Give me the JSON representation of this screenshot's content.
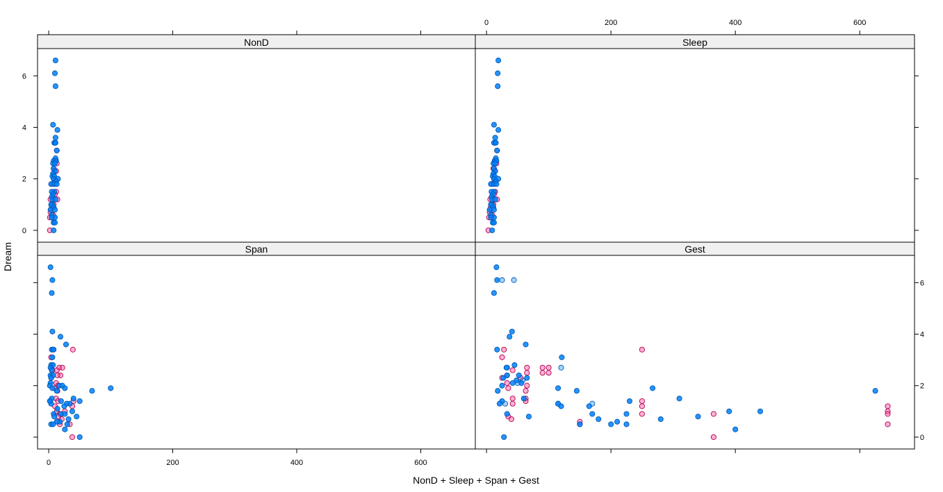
{
  "chart_data": {
    "type": "scatter",
    "layout": "lattice 2x2",
    "ylabel": "Dream",
    "xlabel": "NonD + Sleep + Span + Gest",
    "xlim": [
      -18,
      688
    ],
    "ylim": [
      -0.46,
      7.06
    ],
    "x_ticks": [
      0,
      200,
      400,
      600
    ],
    "y_ticks": [
      0,
      2,
      4,
      6
    ],
    "grid": false,
    "legend": "none",
    "colors": {
      "blue_fill": "#0080FF",
      "blue_edge": "#005BB0",
      "pink_fill": "#FF4FA0",
      "pink_edge": "#B0004F",
      "strip": "#F0F0F0"
    },
    "panels": [
      {
        "name": "NonD",
        "blue": [
          [
            11,
            6.6
          ],
          [
            10,
            6.1
          ],
          [
            11,
            5.6
          ],
          [
            7,
            4.1
          ],
          [
            14,
            3.9
          ],
          [
            11,
            3.6
          ],
          [
            9,
            3.4
          ],
          [
            11,
            3.4
          ],
          [
            13,
            3.1
          ],
          [
            11,
            2.8
          ],
          [
            8,
            2.7
          ],
          [
            12,
            2.7
          ],
          [
            7,
            2.6
          ],
          [
            10,
            2.6
          ],
          [
            8,
            2.4
          ],
          [
            10,
            2.3
          ],
          [
            7,
            2.2
          ],
          [
            6,
            2.1
          ],
          [
            9,
            2.1
          ],
          [
            8,
            2.0
          ],
          [
            15,
            2.0
          ],
          [
            12,
            1.9
          ],
          [
            4,
            1.8
          ],
          [
            9,
            1.8
          ],
          [
            13,
            1.8
          ],
          [
            9,
            1.5
          ],
          [
            5,
            1.5
          ],
          [
            7,
            1.4
          ],
          [
            5,
            1.3
          ],
          [
            6,
            1.2
          ],
          [
            11,
            1.2
          ],
          [
            6,
            1.0
          ],
          [
            4,
            1.0
          ],
          [
            8,
            0.9
          ],
          [
            3,
            0.8
          ],
          [
            10,
            0.8
          ],
          [
            5,
            0.6
          ],
          [
            10,
            0.5
          ],
          [
            5,
            0.5
          ],
          [
            8,
            0.3
          ],
          [
            10,
            0.3
          ],
          [
            8,
            0
          ]
        ],
        "pink": [
          [
            10,
            3.4
          ],
          [
            13,
            3.1
          ],
          [
            11,
            2.7
          ],
          [
            13,
            2.6
          ],
          [
            8,
            2.4
          ],
          [
            12,
            2.3
          ],
          [
            9,
            2.0
          ],
          [
            11,
            1.9
          ],
          [
            6,
            1.8
          ],
          [
            12,
            1.5
          ],
          [
            10,
            1.4
          ],
          [
            14,
            1.2
          ],
          [
            3,
            1.2
          ],
          [
            8,
            1.0
          ],
          [
            5,
            0.9
          ],
          [
            3,
            0.7
          ],
          [
            7,
            0.6
          ],
          [
            2,
            0.5
          ],
          [
            5,
            0.5
          ],
          [
            2,
            0
          ]
        ]
      },
      {
        "name": "Sleep",
        "blue": [
          [
            19,
            6.6
          ],
          [
            18,
            6.1
          ],
          [
            18,
            5.6
          ],
          [
            12,
            4.1
          ],
          [
            19,
            3.9
          ],
          [
            14,
            3.6
          ],
          [
            12,
            3.4
          ],
          [
            15,
            3.4
          ],
          [
            17,
            3.1
          ],
          [
            15,
            2.8
          ],
          [
            13,
            2.7
          ],
          [
            16,
            2.7
          ],
          [
            11,
            2.6
          ],
          [
            14,
            2.6
          ],
          [
            12,
            2.4
          ],
          [
            14,
            2.3
          ],
          [
            11,
            2.2
          ],
          [
            10,
            2.1
          ],
          [
            13,
            2.1
          ],
          [
            12,
            2.0
          ],
          [
            19,
            2.0
          ],
          [
            15,
            1.9
          ],
          [
            7,
            1.8
          ],
          [
            12,
            1.8
          ],
          [
            16,
            1.8
          ],
          [
            12,
            1.5
          ],
          [
            8,
            1.5
          ],
          [
            10,
            1.4
          ],
          [
            8,
            1.3
          ],
          [
            9,
            1.2
          ],
          [
            14,
            1.2
          ],
          [
            9,
            1.0
          ],
          [
            7,
            1.0
          ],
          [
            11,
            0.9
          ],
          [
            5,
            0.8
          ],
          [
            12,
            0.8
          ],
          [
            7,
            0.6
          ],
          [
            12,
            0.5
          ],
          [
            7,
            0.5
          ],
          [
            10,
            0.3
          ],
          [
            12,
            0.3
          ],
          [
            9,
            0
          ]
        ],
        "pink": [
          [
            14,
            3.4
          ],
          [
            17,
            3.1
          ],
          [
            13,
            2.7
          ],
          [
            16,
            2.6
          ],
          [
            11,
            2.4
          ],
          [
            14,
            2.3
          ],
          [
            12,
            2.0
          ],
          [
            14,
            1.9
          ],
          [
            9,
            1.8
          ],
          [
            14,
            1.5
          ],
          [
            12,
            1.4
          ],
          [
            17,
            1.2
          ],
          [
            6,
            1.2
          ],
          [
            11,
            1.0
          ],
          [
            7,
            0.9
          ],
          [
            5,
            0.7
          ],
          [
            9,
            0.6
          ],
          [
            4,
            0.5
          ],
          [
            7,
            0.5
          ],
          [
            3,
            0
          ]
        ]
      },
      {
        "name": "Span",
        "blue": [
          [
            3,
            6.6
          ],
          [
            6,
            6.1
          ],
          [
            5,
            5.6
          ],
          [
            6,
            4.1
          ],
          [
            19,
            3.9
          ],
          [
            28,
            3.6
          ],
          [
            5,
            3.4
          ],
          [
            8,
            3.4
          ],
          [
            6,
            3.1
          ],
          [
            4,
            2.8
          ],
          [
            7,
            2.8
          ],
          [
            3,
            2.7
          ],
          [
            5,
            2.6
          ],
          [
            3,
            2.4
          ],
          [
            7,
            2.4
          ],
          [
            4,
            2.3
          ],
          [
            3,
            2.1
          ],
          [
            17,
            2.0
          ],
          [
            2,
            2.0
          ],
          [
            22,
            2.0
          ],
          [
            6,
            1.9
          ],
          [
            100,
            1.9
          ],
          [
            26,
            1.9
          ],
          [
            70,
            1.8
          ],
          [
            13,
            1.8
          ],
          [
            5,
            1.5
          ],
          [
            2,
            1.4
          ],
          [
            40,
            1.5
          ],
          [
            4,
            1.3
          ],
          [
            20,
            1.4
          ],
          [
            34,
            1.3
          ],
          [
            50,
            1.4
          ],
          [
            2,
            1.4
          ],
          [
            29,
            1.3
          ],
          [
            25,
            1.2
          ],
          [
            14,
            1.1
          ],
          [
            38,
            1.0
          ],
          [
            8,
            0.9
          ],
          [
            20,
            0.9
          ],
          [
            26,
            0.9
          ],
          [
            9,
            0.8
          ],
          [
            45,
            0.8
          ],
          [
            32,
            0.7
          ],
          [
            18,
            0.6
          ],
          [
            4,
            0.5
          ],
          [
            7,
            0.5
          ],
          [
            13,
            0.6
          ],
          [
            30,
            0.5
          ],
          [
            26,
            0.3
          ],
          [
            50,
            0
          ]
        ],
        "pink": [
          [
            39,
            3.4
          ],
          [
            7,
            3.4
          ],
          [
            4,
            3.1
          ],
          [
            17,
            2.7
          ],
          [
            22,
            2.7
          ],
          [
            13,
            2.6
          ],
          [
            6,
            2.6
          ],
          [
            19,
            2.4
          ],
          [
            14,
            2.4
          ],
          [
            4,
            2.3
          ],
          [
            12,
            2.1
          ],
          [
            15,
            2.0
          ],
          [
            10,
            1.9
          ],
          [
            14,
            1.8
          ],
          [
            12,
            1.5
          ],
          [
            40,
            1.4
          ],
          [
            15,
            1.4
          ],
          [
            38,
            1.2
          ],
          [
            10,
            1.2
          ],
          [
            13,
            1.0
          ],
          [
            26,
            1.0
          ],
          [
            18,
            0.9
          ],
          [
            16,
            0.8
          ],
          [
            21,
            0.7
          ],
          [
            14,
            0.6
          ],
          [
            34,
            0.5
          ],
          [
            18,
            0.5
          ],
          [
            38,
            0
          ]
        ]
      },
      {
        "name": "Gest",
        "blue": [
          [
            16,
            6.6
          ],
          [
            17,
            6.1
          ],
          [
            12,
            5.6
          ],
          [
            41,
            4.1
          ],
          [
            37,
            3.9
          ],
          [
            63,
            3.6
          ],
          [
            17,
            3.4
          ],
          [
            121,
            3.1
          ],
          [
            32,
            2.7
          ],
          [
            45,
            2.8
          ],
          [
            52,
            2.4
          ],
          [
            33,
            2.4
          ],
          [
            27,
            2.3
          ],
          [
            65,
            2.3
          ],
          [
            48,
            2.2
          ],
          [
            42,
            2.1
          ],
          [
            56,
            2.1
          ],
          [
            25,
            2.0
          ],
          [
            267,
            1.9
          ],
          [
            115,
            1.9
          ],
          [
            18,
            1.8
          ],
          [
            625,
            1.8
          ],
          [
            145,
            1.8
          ],
          [
            310,
            1.5
          ],
          [
            60,
            1.5
          ],
          [
            230,
            1.4
          ],
          [
            25,
            1.4
          ],
          [
            21,
            1.3
          ],
          [
            115,
            1.3
          ],
          [
            165,
            1.2
          ],
          [
            120,
            1.2
          ],
          [
            440,
            1.0
          ],
          [
            390,
            1.0
          ],
          [
            170,
            0.9
          ],
          [
            225,
            0.9
          ],
          [
            33,
            0.9
          ],
          [
            340,
            0.8
          ],
          [
            68,
            0.8
          ],
          [
            180,
            0.7
          ],
          [
            280,
            0.7
          ],
          [
            210,
            0.6
          ],
          [
            150,
            0.5
          ],
          [
            200,
            0.5
          ],
          [
            225,
            0.5
          ],
          [
            400,
            0.3
          ],
          [
            28,
            0
          ]
        ],
        "blue_light": [
          [
            25,
            6.1
          ],
          [
            44,
            6.1
          ],
          [
            120,
            2.7
          ],
          [
            33,
            2.7
          ],
          [
            58,
            2.2
          ],
          [
            50,
            2.1
          ],
          [
            115,
            1.3
          ],
          [
            170,
            1.3
          ],
          [
            30,
            1.3
          ]
        ],
        "pink": [
          [
            250,
            3.4
          ],
          [
            28,
            3.4
          ],
          [
            25,
            3.1
          ],
          [
            90,
            2.7
          ],
          [
            100,
            2.7
          ],
          [
            65,
            2.7
          ],
          [
            42,
            2.6
          ],
          [
            90,
            2.5
          ],
          [
            100,
            2.5
          ],
          [
            65,
            2.5
          ],
          [
            33,
            2.4
          ],
          [
            55,
            2.3
          ],
          [
            25,
            2.3
          ],
          [
            33,
            2.1
          ],
          [
            65,
            2.0
          ],
          [
            35,
            1.9
          ],
          [
            63,
            1.8
          ],
          [
            42,
            1.5
          ],
          [
            63,
            1.5
          ],
          [
            250,
            1.4
          ],
          [
            63,
            1.4
          ],
          [
            42,
            1.3
          ],
          [
            645,
            1.2
          ],
          [
            250,
            1.2
          ],
          [
            645,
            1.0
          ],
          [
            365,
            0.9
          ],
          [
            250,
            0.9
          ],
          [
            645,
            0.9
          ],
          [
            35,
            0.8
          ],
          [
            40,
            0.7
          ],
          [
            150,
            0.6
          ],
          [
            645,
            0.5
          ],
          [
            150,
            0.5
          ],
          [
            365,
            0
          ]
        ]
      }
    ]
  }
}
